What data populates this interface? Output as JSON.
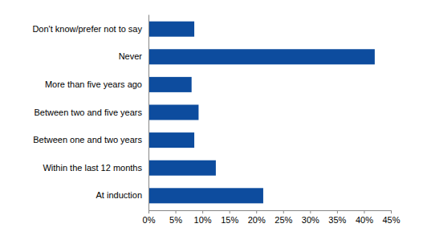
{
  "chart_data": {
    "type": "bar",
    "orientation": "horizontal",
    "categories": [
      "Don't know/prefer not to say",
      "Never",
      "More than five years ago",
      "Between two and five years",
      "Between one and two years",
      "Within the last 12 months",
      "At induction"
    ],
    "values": [
      8.5,
      42,
      8,
      9.3,
      8.5,
      12.5,
      21.3
    ],
    "color": "#0d4c9e",
    "xlim": [
      0,
      45
    ],
    "xticks": [
      {
        "value": 0,
        "label": "0%"
      },
      {
        "value": 5,
        "label": "5%"
      },
      {
        "value": 10,
        "label": "10%"
      },
      {
        "value": 15,
        "label": "15%"
      },
      {
        "value": 20,
        "label": "20%"
      },
      {
        "value": 25,
        "label": "25%"
      },
      {
        "value": 30,
        "label": "30%"
      },
      {
        "value": 35,
        "label": "35%"
      },
      {
        "value": 40,
        "label": "40%"
      },
      {
        "value": 45,
        "label": "45%"
      }
    ],
    "grid": false
  }
}
